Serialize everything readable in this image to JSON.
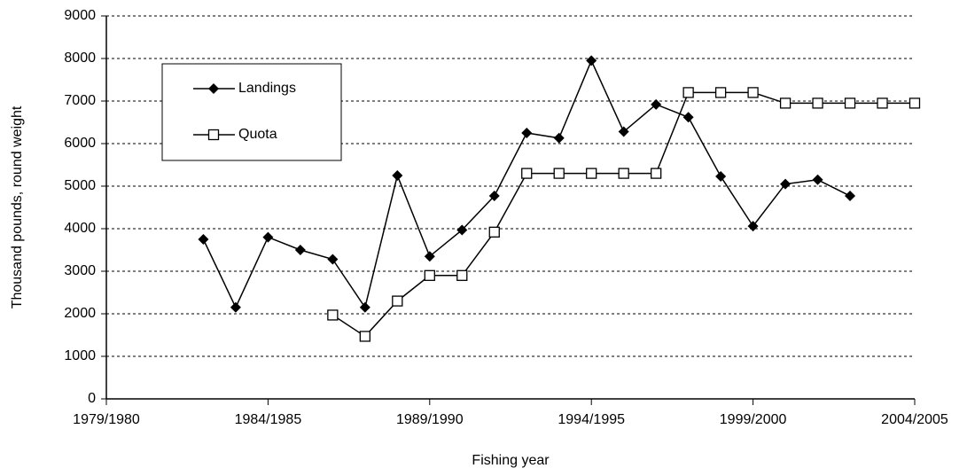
{
  "chart_data": {
    "type": "line",
    "x_label": "Fishing year",
    "y_label": "Thousand pounds, round weight",
    "categories": [
      "1979/1980",
      null,
      null,
      null,
      null,
      "1984/1985",
      null,
      null,
      null,
      null,
      "1989/1990",
      null,
      null,
      null,
      null,
      "1994/1995",
      null,
      null,
      null,
      null,
      "1999/2000",
      null,
      null,
      null,
      null,
      "2004/2005"
    ],
    "series": [
      {
        "name": "Landings",
        "color": "#000000",
        "marker": "diamond",
        "values": [
          null,
          null,
          null,
          3750,
          2150,
          3800,
          3500,
          3280,
          2150,
          5250,
          3350,
          3970,
          4770,
          6250,
          6130,
          7950,
          6280,
          6920,
          6620,
          5230,
          4060,
          5050,
          5150,
          4770,
          null,
          null
        ]
      },
      {
        "name": "Quota",
        "color": "#000000",
        "marker": "square",
        "values": [
          null,
          null,
          null,
          null,
          null,
          null,
          null,
          1970,
          1470,
          2300,
          2900,
          2900,
          3920,
          5300,
          5300,
          5300,
          5300,
          5300,
          7200,
          7200,
          7200,
          6950,
          6950,
          6950,
          6950,
          6950
        ]
      }
    ],
    "ylim": [
      0,
      9000
    ],
    "yticks": [
      0,
      1000,
      2000,
      3000,
      4000,
      5000,
      6000,
      7000,
      8000,
      9000
    ],
    "grid": true,
    "legend": "upper left"
  }
}
